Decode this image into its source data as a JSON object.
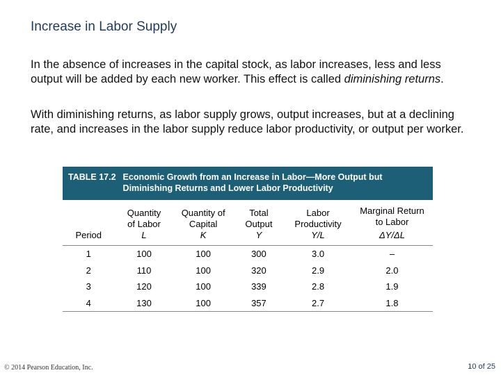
{
  "slide": {
    "title": "Increase in Labor Supply",
    "paragraph1_main": "In the absence of increases in the capital stock, as labor increases, less and less output will be added by each new worker.  This effect is called ",
    "paragraph1_emph": "diminishing returns",
    "paragraph1_end": ".",
    "paragraph2": "With diminishing returns, as labor supply grows, output increases, but at a declining rate, and increases in the labor supply reduce labor productivity, or output per worker."
  },
  "table": {
    "number": "TABLE 17.2",
    "title": "Economic Growth from an Increase in Labor—More Output but Diminishing Returns and Lower Labor Productivity",
    "headers": [
      {
        "label": "Period",
        "symbol": ""
      },
      {
        "label": "Quantity of Labor",
        "symbol": "L"
      },
      {
        "label": "Quantity of Capital",
        "symbol": "K"
      },
      {
        "label": "Total Output",
        "symbol": "Y"
      },
      {
        "label": "Labor Productivity",
        "symbol": "Y/L"
      },
      {
        "label": "Marginal Return to Labor",
        "symbol": "ΔY/ΔL"
      }
    ],
    "rows": [
      [
        "1",
        "100",
        "100",
        "300",
        "3.0",
        "–"
      ],
      [
        "2",
        "110",
        "100",
        "320",
        "2.9",
        "2.0"
      ],
      [
        "3",
        "120",
        "100",
        "339",
        "2.8",
        "1.9"
      ],
      [
        "4",
        "130",
        "100",
        "357",
        "2.7",
        "1.8"
      ]
    ]
  },
  "footer": {
    "copyright": "© 2014 Pearson Education, Inc.",
    "page": "10 of 25"
  }
}
